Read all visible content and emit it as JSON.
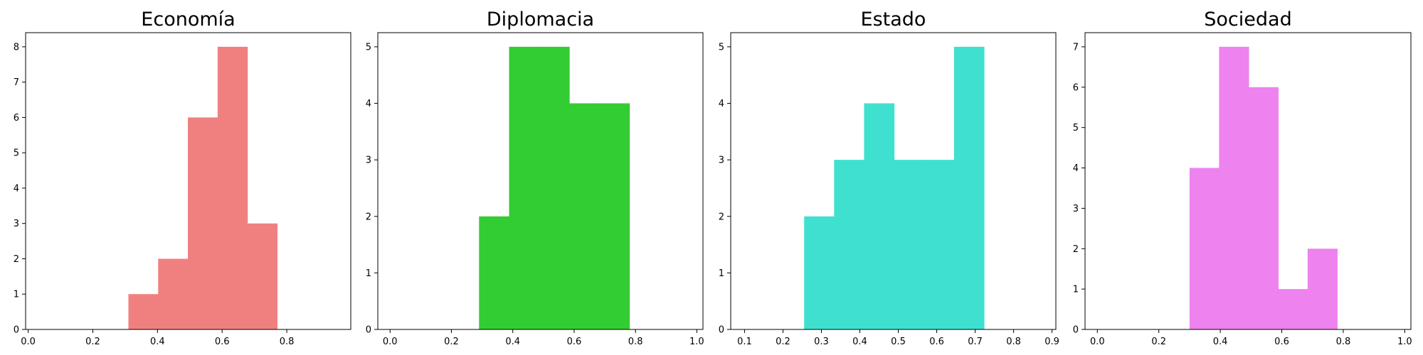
{
  "chart_data": [
    {
      "type": "bar",
      "title": "Economía",
      "color": "#f08080",
      "xlim": [
        -0.008,
        0.998
      ],
      "ylim": [
        0,
        8.4
      ],
      "xticks": [
        0.0,
        0.2,
        0.4,
        0.6,
        0.8
      ],
      "xtick_labels": [
        "0.0",
        "0.2",
        "0.4",
        "0.6",
        "0.8"
      ],
      "yticks": [
        0,
        1,
        2,
        3,
        4,
        5,
        6,
        7,
        8
      ],
      "ytick_labels": [
        "0",
        "1",
        "2",
        "3",
        "4",
        "5",
        "6",
        "7",
        "8"
      ],
      "bin_edges": [
        0.31,
        0.402,
        0.494,
        0.586,
        0.678,
        0.77
      ],
      "counts": [
        1,
        2,
        6,
        8,
        3
      ]
    },
    {
      "type": "bar",
      "title": "Diplomacia",
      "color": "#32cd32",
      "xlim": [
        -0.04,
        1.02
      ],
      "ylim": [
        0,
        5.25
      ],
      "xticks": [
        0.0,
        0.2,
        0.4,
        0.6,
        0.8,
        1.0
      ],
      "xtick_labels": [
        "0.0",
        "0.2",
        "0.4",
        "0.6",
        "0.8",
        "1.0"
      ],
      "yticks": [
        0,
        1,
        2,
        3,
        4,
        5
      ],
      "ytick_labels": [
        "0",
        "1",
        "2",
        "3",
        "4",
        "5"
      ],
      "bin_edges": [
        0.29,
        0.388,
        0.486,
        0.584,
        0.682,
        0.78
      ],
      "counts": [
        2,
        5,
        5,
        4,
        4
      ]
    },
    {
      "type": "bar",
      "title": "Estado",
      "color": "#40e0d0",
      "xlim": [
        0.064,
        0.91
      ],
      "ylim": [
        0,
        5.25
      ],
      "xticks": [
        0.1,
        0.2,
        0.3,
        0.4,
        0.5,
        0.6,
        0.7,
        0.8,
        0.9
      ],
      "xtick_labels": [
        "0.1",
        "0.2",
        "0.3",
        "0.4",
        "0.5",
        "0.6",
        "0.7",
        "0.8",
        "0.9"
      ],
      "yticks": [
        0,
        1,
        2,
        3,
        4,
        5
      ],
      "ytick_labels": [
        "0",
        "1",
        "2",
        "3",
        "4",
        "5"
      ],
      "bin_edges": [
        0.255,
        0.333,
        0.411,
        0.489,
        0.567,
        0.645,
        0.723
      ],
      "counts": [
        2,
        3,
        4,
        3,
        3,
        5
      ]
    },
    {
      "type": "bar",
      "title": "Sociedad",
      "color": "#ee82ee",
      "xlim": [
        -0.04,
        1.02
      ],
      "ylim": [
        0,
        7.35
      ],
      "xticks": [
        0.0,
        0.2,
        0.4,
        0.6,
        0.8,
        1.0
      ],
      "xtick_labels": [
        "0.0",
        "0.2",
        "0.4",
        "0.6",
        "0.8",
        "1.0"
      ],
      "yticks": [
        0,
        1,
        2,
        3,
        4,
        5,
        6,
        7
      ],
      "ytick_labels": [
        "0",
        "1",
        "2",
        "3",
        "4",
        "5",
        "6",
        "7"
      ],
      "bin_edges": [
        0.3,
        0.396,
        0.492,
        0.588,
        0.684,
        0.78
      ],
      "counts": [
        4,
        7,
        6,
        1,
        2
      ]
    }
  ]
}
